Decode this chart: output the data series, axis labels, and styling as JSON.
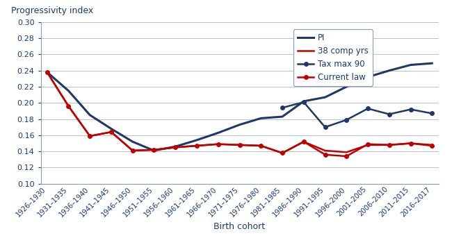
{
  "x_labels": [
    "1926–1930",
    "1931–1935",
    "1936–1940",
    "1941–1945",
    "1946–1950",
    "1951–1955",
    "1956–1960",
    "1961–1965",
    "1966–1970",
    "1971–1975",
    "1976–1980",
    "1981–1985",
    "1986–1990",
    "1991–1995",
    "1996–2000",
    "2001–2005",
    "2006–2010",
    "2011–2015",
    "2016–2017"
  ],
  "PI": [
    0.238,
    0.215,
    0.185,
    0.168,
    0.152,
    0.141,
    0.146,
    0.154,
    0.163,
    0.173,
    0.181,
    0.183,
    0.202,
    0.207,
    0.22,
    0.232,
    0.24,
    0.247,
    0.249
  ],
  "comp38": [
    0.238,
    0.196,
    0.159,
    0.164,
    0.141,
    0.142,
    0.145,
    0.147,
    0.149,
    0.148,
    0.147,
    0.138,
    0.152,
    0.141,
    0.139,
    0.148,
    0.148,
    0.15,
    0.148
  ],
  "taxmax90": [
    null,
    null,
    null,
    null,
    null,
    null,
    null,
    null,
    null,
    null,
    null,
    0.194,
    0.201,
    0.17,
    0.179,
    0.193,
    0.186,
    0.192,
    0.187
  ],
  "current_law": [
    0.238,
    0.196,
    0.159,
    0.164,
    0.141,
    0.142,
    0.145,
    0.147,
    0.149,
    0.148,
    0.147,
    0.138,
    0.152,
    0.136,
    0.134,
    0.149,
    0.148,
    0.15,
    0.147
  ],
  "PI_color": "#1f3864",
  "comp38_color": "#c00000",
  "taxmax90_color": "#1f3864",
  "current_law_color": "#c00000",
  "ylabel": "Progressivity index",
  "xlabel": "Birth cohort",
  "ylim": [
    0.1,
    0.3
  ],
  "yticks": [
    0.1,
    0.12,
    0.14,
    0.16,
    0.18,
    0.2,
    0.22,
    0.24,
    0.26,
    0.28,
    0.3
  ],
  "legend_labels": [
    "PI",
    "38 comp yrs",
    "Tax max 90",
    "Current law"
  ],
  "background_color": "#ffffff",
  "grid_color": "#b8c0d0"
}
